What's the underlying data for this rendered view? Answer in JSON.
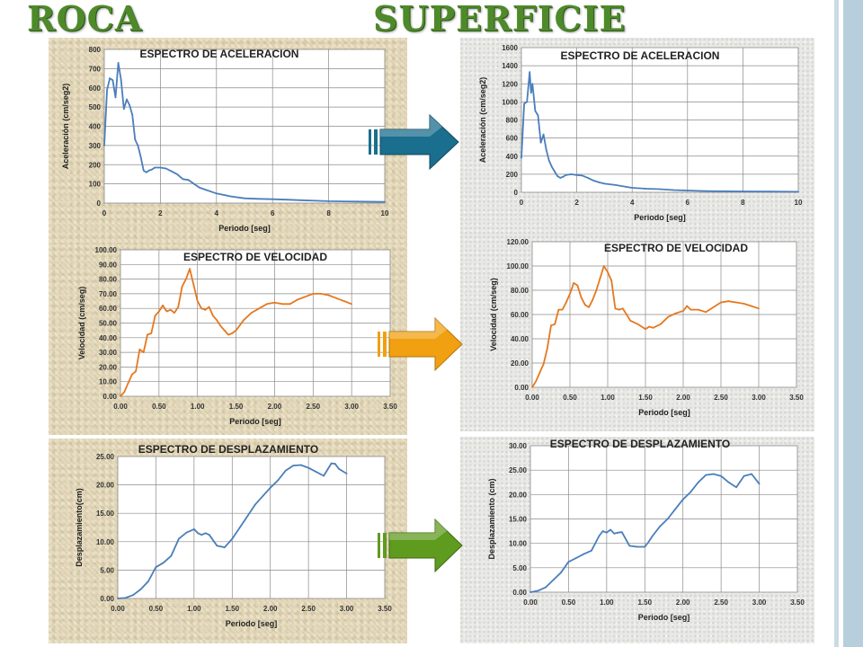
{
  "headings": {
    "left": "ROCA",
    "right": "SUPERFICIE"
  },
  "colors": {
    "accel": "#4a7ebb",
    "vel": "#e5781f",
    "disp": "#4a7ebb",
    "arrow_accel": "#1a6e8e",
    "arrow_vel": "#f0a010",
    "arrow_disp": "#5f9b1e"
  },
  "chart_data": [
    {
      "id": "roca-aceleracion",
      "type": "line",
      "title": "ESPECTRO DE ACELERACION",
      "xlabel": "Periodo [seg]",
      "ylabel": "Aceleración (cm/seg2)",
      "xlim": [
        0,
        10
      ],
      "ylim": [
        0,
        800
      ],
      "xticks": [
        "0",
        "2",
        "4",
        "6",
        "8",
        "10"
      ],
      "yticks": [
        "0",
        "100",
        "200",
        "300",
        "400",
        "500",
        "600",
        "700",
        "800"
      ],
      "grid": true,
      "legend": "none",
      "x": [
        0,
        0.1,
        0.2,
        0.3,
        0.4,
        0.5,
        0.6,
        0.7,
        0.8,
        0.9,
        1.0,
        1.1,
        1.2,
        1.3,
        1.4,
        1.5,
        1.6,
        1.7,
        1.8,
        2.0,
        2.2,
        2.4,
        2.6,
        2.8,
        3.0,
        3.2,
        3.4,
        3.6,
        3.8,
        4.0,
        4.5,
        5.0,
        5.5,
        6.0,
        6.5,
        7.0,
        8.0,
        9.0,
        10.0
      ],
      "y": [
        300,
        590,
        650,
        640,
        550,
        730,
        640,
        490,
        540,
        510,
        460,
        330,
        300,
        240,
        170,
        160,
        170,
        175,
        185,
        185,
        180,
        165,
        150,
        125,
        120,
        100,
        80,
        70,
        60,
        50,
        35,
        25,
        22,
        20,
        18,
        15,
        10,
        8,
        6
      ]
    },
    {
      "id": "roca-velocidad",
      "type": "line",
      "title": "ESPECTRO DE VELOCIDAD",
      "xlabel": "Periodo [seg]",
      "ylabel": "Velocidad (cm/seg)",
      "xlim": [
        0,
        3.5
      ],
      "ylim": [
        0,
        100
      ],
      "xticks": [
        "0.00",
        "0.50",
        "1.00",
        "1.50",
        "2.00",
        "2.50",
        "3.00",
        "3.50"
      ],
      "yticks": [
        "0.00",
        "10.00",
        "20.00",
        "30.00",
        "40.00",
        "50.00",
        "60.00",
        "70.00",
        "80.00",
        "90.00",
        "100.00"
      ],
      "grid": true,
      "legend": "none",
      "x": [
        0,
        0.05,
        0.1,
        0.15,
        0.2,
        0.25,
        0.3,
        0.35,
        0.4,
        0.45,
        0.5,
        0.55,
        0.6,
        0.65,
        0.7,
        0.75,
        0.8,
        0.85,
        0.9,
        0.95,
        1.0,
        1.05,
        1.1,
        1.15,
        1.2,
        1.25,
        1.3,
        1.35,
        1.4,
        1.45,
        1.5,
        1.6,
        1.7,
        1.8,
        1.9,
        2.0,
        2.1,
        2.2,
        2.3,
        2.4,
        2.5,
        2.6,
        2.7,
        2.8,
        2.9,
        3.0
      ],
      "y": [
        0,
        3,
        9,
        15,
        17,
        32,
        30,
        42,
        43,
        55,
        58,
        62,
        58,
        59,
        57,
        61,
        75,
        80,
        87,
        76,
        65,
        60,
        59,
        61,
        55,
        52,
        48,
        45,
        42,
        43,
        45,
        52,
        57,
        60,
        63,
        64,
        63,
        63,
        66,
        68,
        70,
        70,
        69,
        67,
        65,
        63
      ]
    },
    {
      "id": "roca-desplazamiento",
      "type": "line",
      "title": "ESPECTRO DE DESPLAZAMIENTO",
      "xlabel": "Periodo [seg]",
      "ylabel": "Desplazamiento(cm)",
      "xlim": [
        0,
        3.5
      ],
      "ylim": [
        0,
        25
      ],
      "xticks": [
        "0.00",
        "0.50",
        "1.00",
        "1.50",
        "2.00",
        "2.50",
        "3.00",
        "3.50"
      ],
      "yticks": [
        "0.00",
        "5.00",
        "10.00",
        "15.00",
        "20.00",
        "25.00"
      ],
      "grid": true,
      "legend": "none",
      "x": [
        0,
        0.1,
        0.2,
        0.3,
        0.4,
        0.5,
        0.6,
        0.7,
        0.8,
        0.9,
        1.0,
        1.05,
        1.1,
        1.15,
        1.2,
        1.3,
        1.4,
        1.5,
        1.6,
        1.7,
        1.8,
        1.9,
        2.0,
        2.1,
        2.2,
        2.3,
        2.4,
        2.5,
        2.6,
        2.7,
        2.8,
        2.85,
        2.9,
        3.0
      ],
      "y": [
        0,
        0.1,
        0.6,
        1.6,
        3.0,
        5.5,
        6.3,
        7.5,
        10.5,
        11.6,
        12.2,
        11.5,
        11.2,
        11.5,
        11.2,
        9.3,
        9.0,
        10.5,
        12.5,
        14.5,
        16.5,
        18.0,
        19.5,
        20.8,
        22.5,
        23.4,
        23.5,
        23.0,
        22.3,
        21.6,
        23.8,
        23.7,
        22.8,
        22.0
      ]
    },
    {
      "id": "superficie-aceleracion",
      "type": "line",
      "title": "ESPECTRO DE ACELERACION",
      "xlabel": "Periodo [seg]",
      "ylabel": "Aceleración (cm/seg2)",
      "xlim": [
        0,
        10
      ],
      "ylim": [
        0,
        1600
      ],
      "xticks": [
        "0",
        "2",
        "4",
        "6",
        "8",
        "10"
      ],
      "yticks": [
        "0",
        "200",
        "400",
        "600",
        "800",
        "1000",
        "1200",
        "1400",
        "1600"
      ],
      "grid": true,
      "legend": "none",
      "x": [
        0,
        0.1,
        0.2,
        0.3,
        0.35,
        0.4,
        0.5,
        0.6,
        0.7,
        0.8,
        0.9,
        1.0,
        1.1,
        1.2,
        1.3,
        1.4,
        1.5,
        1.6,
        1.8,
        2.0,
        2.2,
        2.4,
        2.6,
        2.8,
        3.0,
        3.4,
        3.8,
        4.0,
        4.5,
        5.0,
        5.5,
        6.0,
        6.5,
        7.0,
        8.0,
        9.0,
        10.0
      ],
      "y": [
        380,
        980,
        1000,
        1330,
        1100,
        1200,
        900,
        850,
        550,
        640,
        470,
        350,
        280,
        230,
        180,
        160,
        170,
        190,
        200,
        190,
        185,
        160,
        130,
        110,
        95,
        80,
        60,
        50,
        40,
        35,
        25,
        20,
        15,
        12,
        10,
        8,
        6
      ]
    },
    {
      "id": "superficie-velocidad",
      "type": "line",
      "title": "ESPECTRO DE VELOCIDAD",
      "xlabel": "Periodo [seg]",
      "ylabel": "Velocidad (cm/seg)",
      "xlim": [
        0,
        3.5
      ],
      "ylim": [
        0,
        120
      ],
      "xticks": [
        "0.00",
        "0.50",
        "1.00",
        "1.50",
        "2.00",
        "2.50",
        "3.00",
        "3.50"
      ],
      "yticks": [
        "0.00",
        "20.00",
        "40.00",
        "60.00",
        "80.00",
        "100.00",
        "120.00"
      ],
      "grid": true,
      "legend": "none",
      "x": [
        0,
        0.05,
        0.1,
        0.15,
        0.2,
        0.25,
        0.3,
        0.35,
        0.4,
        0.45,
        0.5,
        0.55,
        0.6,
        0.65,
        0.7,
        0.75,
        0.8,
        0.85,
        0.9,
        0.95,
        1.0,
        1.05,
        1.1,
        1.15,
        1.2,
        1.25,
        1.3,
        1.4,
        1.5,
        1.55,
        1.6,
        1.7,
        1.8,
        1.9,
        2.0,
        2.05,
        2.1,
        2.2,
        2.3,
        2.4,
        2.5,
        2.6,
        2.7,
        2.8,
        2.9,
        3.0
      ],
      "y": [
        0,
        5,
        12,
        19,
        32,
        51,
        52,
        64,
        64,
        70,
        77,
        86,
        84,
        74,
        68,
        66,
        72,
        80,
        90,
        100,
        95,
        88,
        65,
        64,
        65,
        60,
        55,
        52,
        48,
        50,
        49,
        52,
        58,
        61,
        63,
        67,
        64,
        64,
        62,
        66,
        70,
        71,
        70,
        69,
        67,
        65
      ]
    },
    {
      "id": "superficie-desplazamiento",
      "type": "line",
      "title": "ESPECTRO DE DESPLAZAMIENTO",
      "xlabel": "Periodo [seg]",
      "ylabel": "Desplazamiento (cm)",
      "xlim": [
        0,
        3.5
      ],
      "ylim": [
        0,
        30
      ],
      "xticks": [
        "0.00",
        "0.50",
        "1.00",
        "1.50",
        "2.00",
        "2.50",
        "3.00",
        "3.50"
      ],
      "yticks": [
        "0.00",
        "5.00",
        "10.00",
        "15.00",
        "20.00",
        "25.00",
        "30.00"
      ],
      "grid": true,
      "legend": "none",
      "x": [
        0,
        0.1,
        0.2,
        0.3,
        0.4,
        0.5,
        0.6,
        0.7,
        0.8,
        0.9,
        0.95,
        1.0,
        1.05,
        1.1,
        1.15,
        1.2,
        1.3,
        1.4,
        1.5,
        1.55,
        1.6,
        1.7,
        1.8,
        1.9,
        2.0,
        2.1,
        2.2,
        2.3,
        2.4,
        2.5,
        2.6,
        2.7,
        2.8,
        2.9,
        3.0
      ],
      "y": [
        0,
        0.3,
        1.0,
        2.5,
        4.0,
        6.2,
        7.0,
        7.8,
        8.5,
        11.5,
        12.5,
        12.2,
        12.8,
        12.0,
        12.2,
        12.3,
        9.5,
        9.3,
        9.3,
        10.3,
        11.5,
        13.5,
        15.0,
        17.0,
        19.0,
        20.5,
        22.5,
        24.0,
        24.2,
        23.8,
        22.5,
        21.5,
        23.8,
        24.2,
        22.2
      ]
    }
  ]
}
